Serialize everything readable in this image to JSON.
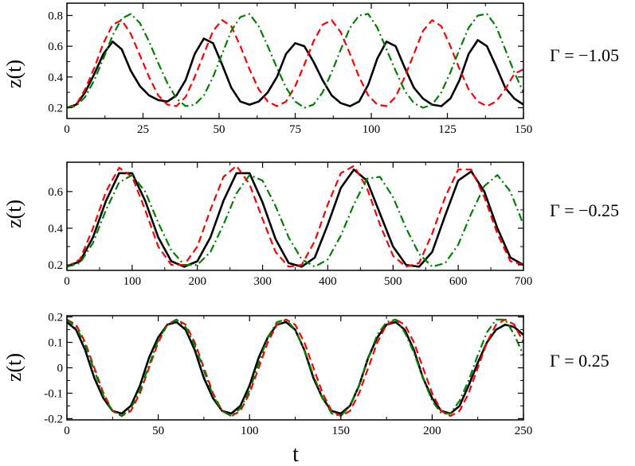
{
  "colors": {
    "sim": "#000000",
    "dashed": "#ff0000",
    "dashdot": "#008000",
    "axes": "#000000",
    "background": "#ffffff"
  },
  "xlabel": "t",
  "chart_data": [
    {
      "type": "line",
      "ylabel": "z(t)",
      "annotation": "Γ = −1.05",
      "xlim": [
        0,
        150
      ],
      "ylim": [
        0.13,
        0.88
      ],
      "xticks": [
        0,
        25,
        50,
        75,
        100,
        125,
        150
      ],
      "xtick_labels": [
        "0",
        "25",
        "50",
        "75",
        "100",
        "125",
        "150"
      ],
      "yticks": [
        0.2,
        0.4,
        0.6,
        0.8
      ],
      "ytick_labels": [
        "0.2",
        "0.4",
        "0.6",
        "0.8"
      ],
      "series": [
        {
          "style": "solid",
          "color": "#000000",
          "x": [
            0,
            3,
            6,
            9,
            12,
            15,
            18,
            21,
            24,
            27,
            30,
            33,
            36,
            39,
            42,
            45,
            48,
            51,
            54,
            57,
            60,
            63,
            66,
            69,
            72,
            75,
            78,
            81,
            84,
            87,
            90,
            93,
            96,
            99,
            102,
            105,
            108,
            111,
            114,
            117,
            120,
            123,
            126,
            129,
            132,
            135,
            138,
            141,
            144,
            147,
            150
          ],
          "y": [
            0.2,
            0.22,
            0.3,
            0.42,
            0.55,
            0.63,
            0.58,
            0.44,
            0.34,
            0.28,
            0.25,
            0.24,
            0.28,
            0.38,
            0.55,
            0.65,
            0.62,
            0.48,
            0.33,
            0.24,
            0.22,
            0.24,
            0.3,
            0.4,
            0.55,
            0.62,
            0.6,
            0.5,
            0.38,
            0.28,
            0.23,
            0.21,
            0.24,
            0.35,
            0.52,
            0.63,
            0.6,
            0.46,
            0.33,
            0.26,
            0.22,
            0.21,
            0.26,
            0.38,
            0.55,
            0.64,
            0.6,
            0.47,
            0.33,
            0.26,
            0.22
          ]
        },
        {
          "style": "dashed",
          "color": "#ff0000",
          "x": [
            0,
            3,
            6,
            9,
            12,
            15,
            18,
            21,
            24,
            27,
            30,
            33,
            36,
            39,
            42,
            45,
            48,
            51,
            54,
            57,
            60,
            63,
            66,
            69,
            72,
            75,
            78,
            81,
            84,
            87,
            90,
            93,
            96,
            99,
            102,
            105,
            108,
            111,
            114,
            117,
            120,
            123,
            126,
            129,
            132,
            135,
            138,
            141,
            144,
            147,
            150
          ],
          "y": [
            0.2,
            0.22,
            0.32,
            0.46,
            0.62,
            0.74,
            0.77,
            0.68,
            0.54,
            0.4,
            0.28,
            0.22,
            0.21,
            0.27,
            0.4,
            0.55,
            0.7,
            0.77,
            0.73,
            0.6,
            0.45,
            0.32,
            0.24,
            0.21,
            0.24,
            0.34,
            0.48,
            0.63,
            0.74,
            0.77,
            0.69,
            0.55,
            0.4,
            0.28,
            0.22,
            0.21,
            0.27,
            0.4,
            0.55,
            0.7,
            0.77,
            0.73,
            0.6,
            0.45,
            0.32,
            0.24,
            0.21,
            0.24,
            0.32,
            0.42,
            0.45
          ]
        },
        {
          "style": "dashdot",
          "color": "#008000",
          "x": [
            0,
            3,
            6,
            9,
            12,
            15,
            18,
            21,
            24,
            27,
            30,
            33,
            36,
            39,
            42,
            45,
            48,
            51,
            54,
            57,
            60,
            63,
            66,
            69,
            72,
            75,
            78,
            81,
            84,
            87,
            90,
            93,
            96,
            99,
            102,
            105,
            108,
            111,
            114,
            117,
            120,
            123,
            126,
            129,
            132,
            135,
            138,
            141,
            144,
            147,
            150
          ],
          "y": [
            0.2,
            0.21,
            0.27,
            0.38,
            0.52,
            0.67,
            0.78,
            0.81,
            0.75,
            0.63,
            0.49,
            0.36,
            0.26,
            0.21,
            0.22,
            0.28,
            0.4,
            0.55,
            0.7,
            0.79,
            0.81,
            0.73,
            0.6,
            0.46,
            0.33,
            0.24,
            0.2,
            0.22,
            0.3,
            0.43,
            0.58,
            0.72,
            0.8,
            0.81,
            0.72,
            0.58,
            0.44,
            0.31,
            0.23,
            0.2,
            0.22,
            0.3,
            0.43,
            0.58,
            0.72,
            0.8,
            0.81,
            0.73,
            0.58,
            0.43,
            0.3
          ]
        }
      ]
    },
    {
      "type": "line",
      "ylabel": "z(t)",
      "annotation": "Γ = −0.25",
      "xlim": [
        0,
        700
      ],
      "ylim": [
        0.17,
        0.76
      ],
      "xticks": [
        0,
        100,
        200,
        300,
        400,
        500,
        600,
        700
      ],
      "xtick_labels": [
        "0",
        "100",
        "200",
        "300",
        "400",
        "500",
        "600",
        "700"
      ],
      "yticks": [
        0.2,
        0.4,
        0.6
      ],
      "ytick_labels": [
        "0.2",
        "0.4",
        "0.6"
      ],
      "series": [
        {
          "style": "solid",
          "color": "#000000",
          "x": [
            0,
            20,
            40,
            60,
            80,
            100,
            120,
            140,
            160,
            180,
            200,
            220,
            240,
            260,
            280,
            300,
            320,
            340,
            360,
            380,
            400,
            420,
            440,
            460,
            480,
            500,
            520,
            540,
            560,
            580,
            600,
            620,
            640,
            660,
            680,
            700
          ],
          "y": [
            0.19,
            0.22,
            0.35,
            0.55,
            0.7,
            0.7,
            0.55,
            0.35,
            0.22,
            0.19,
            0.22,
            0.35,
            0.55,
            0.7,
            0.7,
            0.54,
            0.34,
            0.21,
            0.19,
            0.24,
            0.42,
            0.62,
            0.72,
            0.66,
            0.48,
            0.3,
            0.2,
            0.19,
            0.27,
            0.47,
            0.66,
            0.71,
            0.6,
            0.4,
            0.24,
            0.2
          ]
        },
        {
          "style": "dashed",
          "color": "#ff0000",
          "x": [
            0,
            20,
            40,
            60,
            80,
            100,
            120,
            140,
            160,
            180,
            200,
            220,
            240,
            260,
            280,
            300,
            320,
            340,
            360,
            380,
            400,
            420,
            440,
            460,
            480,
            500,
            520,
            540,
            560,
            580,
            600,
            620,
            640,
            660,
            680,
            700
          ],
          "y": [
            0.19,
            0.23,
            0.4,
            0.6,
            0.73,
            0.68,
            0.5,
            0.3,
            0.2,
            0.2,
            0.3,
            0.5,
            0.68,
            0.74,
            0.64,
            0.45,
            0.27,
            0.19,
            0.2,
            0.33,
            0.53,
            0.7,
            0.74,
            0.62,
            0.42,
            0.25,
            0.19,
            0.21,
            0.37,
            0.57,
            0.72,
            0.72,
            0.57,
            0.37,
            0.22,
            0.2
          ]
        },
        {
          "style": "dashdot",
          "color": "#008000",
          "x": [
            0,
            20,
            40,
            60,
            80,
            100,
            120,
            140,
            160,
            180,
            200,
            220,
            240,
            260,
            280,
            300,
            320,
            340,
            360,
            380,
            400,
            420,
            440,
            460,
            480,
            500,
            520,
            540,
            560,
            580,
            600,
            620,
            640,
            660,
            680,
            700
          ],
          "y": [
            0.19,
            0.21,
            0.32,
            0.5,
            0.65,
            0.69,
            0.6,
            0.43,
            0.28,
            0.2,
            0.2,
            0.27,
            0.42,
            0.59,
            0.69,
            0.66,
            0.52,
            0.35,
            0.23,
            0.19,
            0.23,
            0.36,
            0.53,
            0.67,
            0.68,
            0.57,
            0.4,
            0.26,
            0.19,
            0.21,
            0.31,
            0.48,
            0.63,
            0.69,
            0.6,
            0.42
          ]
        }
      ]
    },
    {
      "type": "line",
      "ylabel": "z(t)",
      "annotation": "Γ = 0.25",
      "xlim": [
        0,
        250
      ],
      "ylim": [
        -0.205,
        0.205
      ],
      "xticks": [
        0,
        50,
        100,
        150,
        200,
        250
      ],
      "xtick_labels": [
        "0",
        "50",
        "100",
        "150",
        "200",
        "250"
      ],
      "yticks": [
        -0.2,
        -0.1,
        0,
        0.1,
        0.2
      ],
      "ytick_labels": [
        "-0.2",
        "-0.1",
        "0",
        "0.1",
        "0.2"
      ],
      "series": [
        {
          "style": "solid",
          "color": "#000000",
          "x": [
            0,
            5,
            10,
            15,
            20,
            25,
            30,
            35,
            40,
            45,
            50,
            55,
            60,
            65,
            70,
            75,
            80,
            85,
            90,
            95,
            100,
            105,
            110,
            115,
            120,
            125,
            130,
            135,
            140,
            145,
            150,
            155,
            160,
            165,
            170,
            175,
            180,
            185,
            190,
            195,
            200,
            205,
            210,
            215,
            220,
            225,
            230,
            235,
            240,
            245,
            250
          ],
          "y": [
            0.18,
            0.15,
            0.07,
            -0.04,
            -0.12,
            -0.17,
            -0.18,
            -0.15,
            -0.07,
            0.04,
            0.12,
            0.17,
            0.18,
            0.15,
            0.07,
            -0.04,
            -0.12,
            -0.17,
            -0.18,
            -0.15,
            -0.07,
            0.04,
            0.12,
            0.17,
            0.18,
            0.15,
            0.07,
            -0.04,
            -0.12,
            -0.17,
            -0.18,
            -0.15,
            -0.07,
            0.04,
            0.12,
            0.17,
            0.18,
            0.15,
            0.07,
            -0.04,
            -0.12,
            -0.17,
            -0.18,
            -0.15,
            -0.07,
            0.02,
            0.1,
            0.15,
            0.17,
            0.16,
            0.13
          ]
        },
        {
          "style": "dashed",
          "color": "#ff0000",
          "x": [
            0,
            5,
            10,
            15,
            20,
            25,
            30,
            35,
            40,
            45,
            50,
            55,
            60,
            65,
            70,
            75,
            80,
            85,
            90,
            95,
            100,
            105,
            110,
            115,
            120,
            125,
            130,
            135,
            140,
            145,
            150,
            155,
            160,
            165,
            170,
            175,
            180,
            185,
            190,
            195,
            200,
            205,
            210,
            215,
            220,
            225,
            230,
            235,
            240,
            245,
            250
          ],
          "y": [
            0.19,
            0.17,
            0.1,
            0,
            -0.1,
            -0.17,
            -0.19,
            -0.17,
            -0.1,
            0,
            0.1,
            0.17,
            0.19,
            0.17,
            0.1,
            0,
            -0.1,
            -0.17,
            -0.19,
            -0.17,
            -0.1,
            0,
            0.1,
            0.17,
            0.19,
            0.17,
            0.1,
            0,
            -0.1,
            -0.17,
            -0.19,
            -0.17,
            -0.1,
            0,
            0.1,
            0.17,
            0.19,
            0.17,
            0.1,
            0,
            -0.1,
            -0.17,
            -0.19,
            -0.17,
            -0.1,
            0,
            0.1,
            0.17,
            0.19,
            0.17,
            0.1
          ]
        },
        {
          "style": "dashdot",
          "color": "#008000",
          "x": [
            0,
            5,
            10,
            15,
            20,
            25,
            30,
            35,
            40,
            45,
            50,
            55,
            60,
            65,
            70,
            75,
            80,
            85,
            90,
            95,
            100,
            105,
            110,
            115,
            120,
            125,
            130,
            135,
            140,
            145,
            150,
            155,
            160,
            165,
            170,
            175,
            180,
            185,
            190,
            195,
            200,
            205,
            210,
            215,
            220,
            225,
            230,
            235,
            240,
            245,
            250
          ],
          "y": [
            0.19,
            0.16,
            0.09,
            -0.01,
            -0.11,
            -0.17,
            -0.19,
            -0.16,
            -0.09,
            0.01,
            0.11,
            0.17,
            0.19,
            0.16,
            0.09,
            -0.01,
            -0.11,
            -0.17,
            -0.19,
            -0.16,
            -0.09,
            0.02,
            0.12,
            0.18,
            0.19,
            0.15,
            0.07,
            -0.03,
            -0.12,
            -0.18,
            -0.19,
            -0.15,
            -0.07,
            0.04,
            0.13,
            0.18,
            0.19,
            0.14,
            0.06,
            -0.04,
            -0.13,
            -0.18,
            -0.18,
            -0.13,
            -0.05,
            0.05,
            0.14,
            0.19,
            0.19,
            0.13,
            0.05
          ]
        }
      ]
    }
  ]
}
